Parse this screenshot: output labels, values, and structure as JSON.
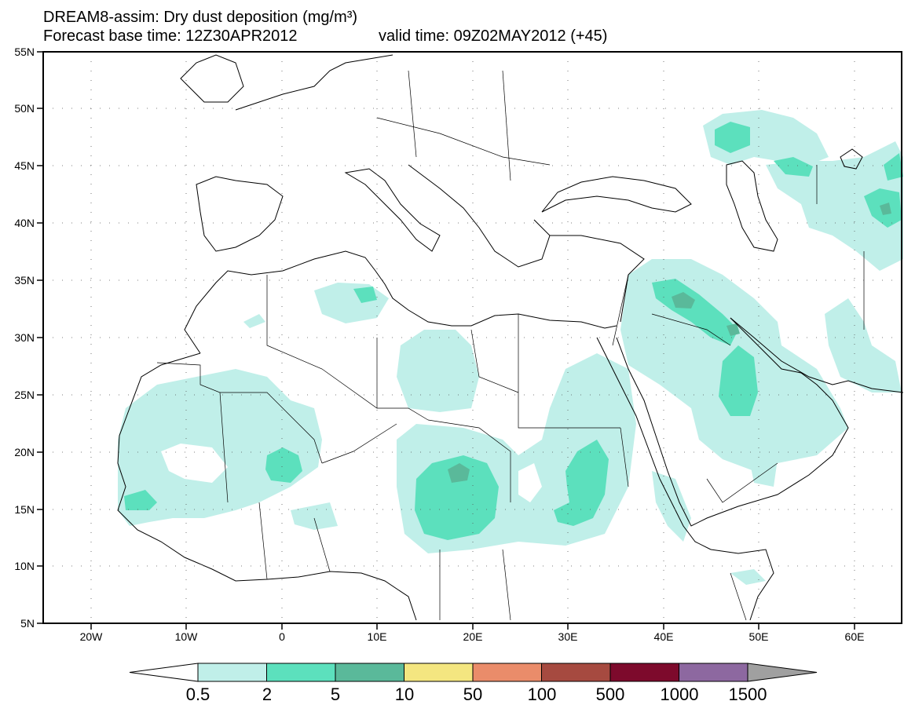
{
  "header": {
    "title": "DREAM8-assim: Dry dust deposition (mg/m³)",
    "base_time": "Forecast base time: 12Z30APR2012",
    "valid_time": "valid time: 09Z02MAY2012 (+45)"
  },
  "map": {
    "region": "North Africa and Middle East",
    "lat_range": [
      5,
      55
    ],
    "lon_range": [
      -25,
      65
    ],
    "lat_labels": [
      "55N",
      "50N",
      "45N",
      "40N",
      "35N",
      "30N",
      "25N",
      "20N",
      "15N",
      "10N",
      "5N"
    ],
    "lon_labels": [
      "20W",
      "10W",
      "0",
      "10E",
      "20E",
      "30E",
      "40E",
      "50E",
      "60E"
    ],
    "coastline_color": "#000000"
  },
  "colorbar": {
    "levels": [
      "0.5",
      "2",
      "5",
      "10",
      "50",
      "100",
      "500",
      "1000",
      "1500"
    ],
    "colors": [
      "#c0efe9",
      "#5ce0bd",
      "#5ab99a",
      "#f4e680",
      "#ea8c6a",
      "#a64a40",
      "#7d0a2c",
      "#8d68a0"
    ],
    "over_color": "#a0a0a0",
    "under_color": "#ffffff"
  }
}
